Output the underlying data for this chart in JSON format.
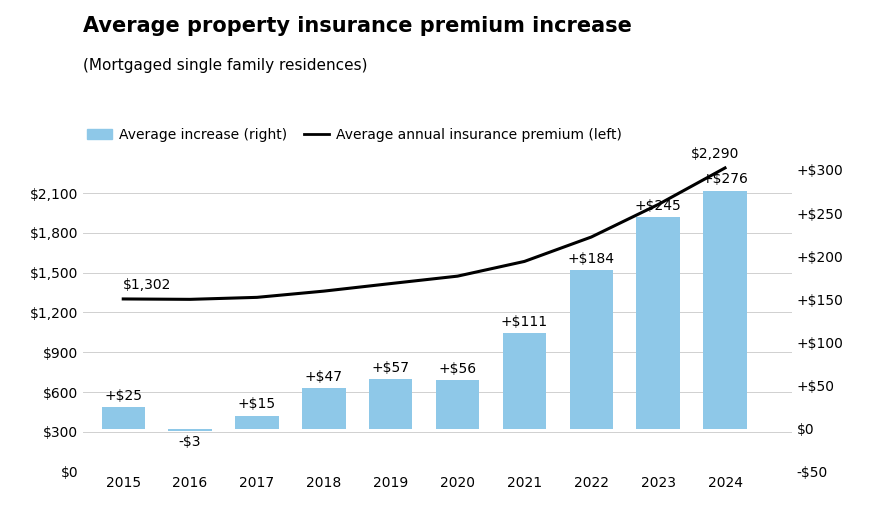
{
  "title": "Average property insurance premium increase",
  "subtitle": "(Mortgaged single family residences)",
  "years": [
    2015,
    2016,
    2017,
    2018,
    2019,
    2020,
    2021,
    2022,
    2023,
    2024
  ],
  "bar_values": [
    25,
    -3,
    15,
    47,
    57,
    56,
    111,
    184,
    245,
    276
  ],
  "line_values": [
    1302,
    1299,
    1314,
    1361,
    1418,
    1474,
    1585,
    1769,
    2014,
    2290
  ],
  "bar_labels": [
    "+$25",
    "-$3",
    "+$15",
    "+$47",
    "+$57",
    "+$56",
    "+$111",
    "+$184",
    "+$245",
    "+$276"
  ],
  "line_label_2015": "$1,302",
  "line_label_2024": "$2,290",
  "bar_color": "#8ec8e8",
  "line_color": "#000000",
  "left_ylim": [
    0,
    2450
  ],
  "left_yticks": [
    0,
    300,
    600,
    900,
    1200,
    1500,
    1800,
    2100
  ],
  "left_yticklabels": [
    "$0",
    "$300",
    "$600",
    "$900",
    "$1,200",
    "$1,500",
    "$1,800",
    "$2,100"
  ],
  "right_ylim": [
    -50,
    327
  ],
  "right_yticks": [
    -50,
    0,
    50,
    100,
    150,
    200,
    250,
    300
  ],
  "right_yticklabels": [
    "-$50",
    "$0",
    "+$50",
    "+$100",
    "+$150",
    "+$200",
    "+$250",
    "+$300"
  ],
  "legend_bar_label": "Average increase (right)",
  "legend_line_label": "Average annual insurance premium (left)",
  "background_color": "#ffffff",
  "title_fontsize": 15,
  "subtitle_fontsize": 11,
  "tick_fontsize": 10,
  "label_fontsize": 10
}
